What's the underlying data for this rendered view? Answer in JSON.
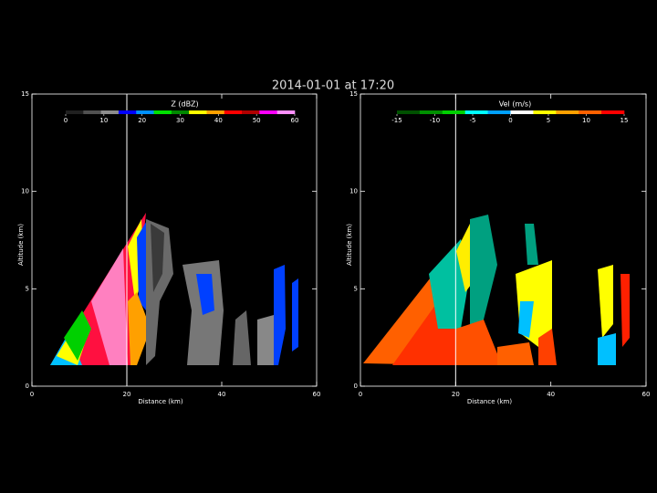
{
  "title": "2014-01-01 at 17:20",
  "chart_data": [
    {
      "type": "rhi",
      "xlabel": "Distance (km)",
      "ylabel": "Altitude (km)",
      "xlim": [
        0,
        60
      ],
      "xticks": [
        0,
        20,
        40,
        60
      ],
      "ylim": [
        0,
        15
      ],
      "yticks": [
        0,
        5,
        10,
        15
      ],
      "vline": 20,
      "colorbar": {
        "label": "Z (dBZ)",
        "lim": [
          0,
          60
        ],
        "ticks": [
          0,
          10,
          20,
          30,
          40,
          50,
          60
        ],
        "colors": [
          "#202020",
          "#505050",
          "#8c8c8c",
          "#0000ff",
          "#0090ff",
          "#00e000",
          "#008800",
          "#ffff00",
          "#ffa000",
          "#ff0000",
          "#b00000",
          "#ff00ff",
          "#ff90ff"
        ]
      }
    },
    {
      "type": "rhi",
      "xlabel": "Distance (km)",
      "ylabel": "Altitude (km)",
      "xlim": [
        0,
        60
      ],
      "xticks": [
        0,
        20,
        40,
        60
      ],
      "ylim": [
        0,
        15
      ],
      "yticks": [
        0,
        5,
        10,
        15
      ],
      "vline": 20,
      "colorbar": {
        "label": "Vel (m/s)",
        "lim": [
          -15,
          15
        ],
        "ticks": [
          -15,
          -10,
          -5,
          0,
          5,
          10,
          15
        ],
        "colors": [
          "#005000",
          "#009000",
          "#00d000",
          "#00ffff",
          "#00a0ff",
          "#ffffff",
          "#ffff00",
          "#ffa000",
          "#ff6000",
          "#ff0000"
        ]
      }
    }
  ]
}
